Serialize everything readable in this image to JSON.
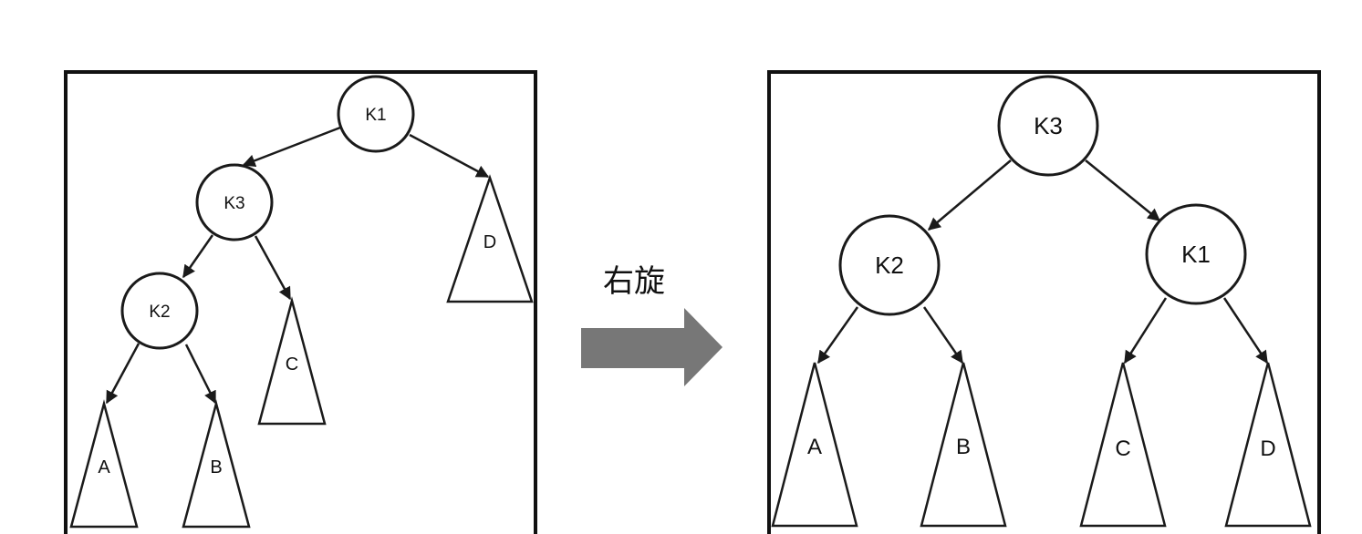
{
  "diagram": {
    "caption": "右旋",
    "arrow_color": "#777777",
    "before": {
      "nodes": {
        "k1": "K1",
        "k3": "K3",
        "k2": "K2"
      },
      "subtrees": {
        "a": "A",
        "b": "B",
        "c": "C",
        "d": "D"
      }
    },
    "after": {
      "nodes": {
        "k3": "K3",
        "k2": "K2",
        "k1": "K1"
      },
      "subtrees": {
        "a": "A",
        "b": "B",
        "c": "C",
        "d": "D"
      }
    }
  }
}
